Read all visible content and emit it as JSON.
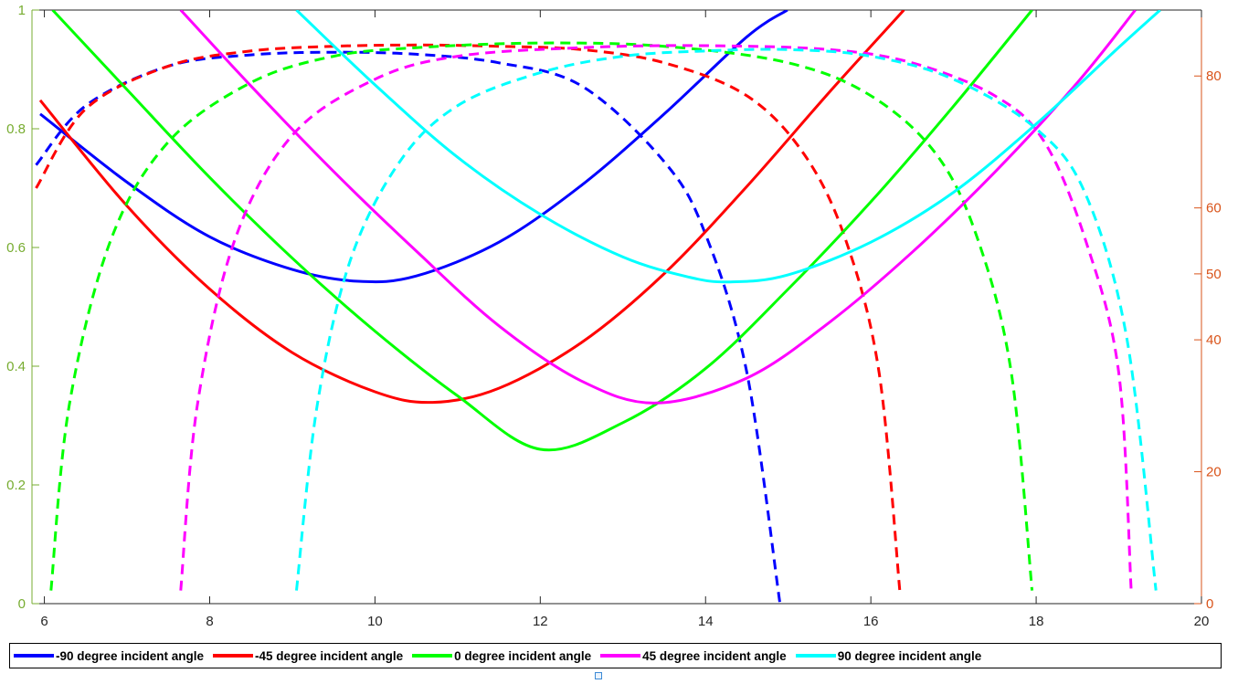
{
  "chart_data": {
    "type": "line",
    "xlim": [
      5.85,
      20
    ],
    "ylim_left": [
      0,
      1
    ],
    "ylim_right": [
      0,
      90
    ],
    "x_ticks": [
      "6",
      "8",
      "10",
      "12",
      "14",
      "16",
      "18",
      "20"
    ],
    "y_ticks_left": [
      "0",
      "0.2",
      "0.4",
      "0.6",
      "0.8",
      "1"
    ],
    "y_ticks_right": [
      "0",
      "20",
      "40",
      "50",
      "60",
      "80"
    ],
    "legend_placement": "bottom-outside",
    "grid": false,
    "series": [
      {
        "name": "-90 degree incident angle",
        "color": "#0000ff",
        "solid": {
          "axis": "left",
          "x": [
            5.95,
            7,
            8,
            9,
            9.8,
            10.5,
            11.5,
            12.5,
            13.5,
            14.5,
            14.99
          ],
          "y": [
            0.825,
            0.71,
            0.618,
            0.563,
            0.543,
            0.552,
            0.609,
            0.705,
            0.825,
            0.955,
            1.0
          ]
        },
        "dashed": {
          "axis": "right",
          "x": [
            5.9,
            6.5,
            7.5,
            8.5,
            9.5,
            10.5,
            11.5,
            12.5,
            13.5,
            14,
            14.5,
            14.9
          ],
          "y": [
            66.5,
            75.5,
            81.5,
            83.2,
            83.6,
            83.3,
            82,
            78.5,
            67,
            56,
            35,
            0
          ]
        }
      },
      {
        "name": "-45 degree incident angle",
        "color": "#ff0000",
        "solid": {
          "axis": "left",
          "x": [
            5.95,
            7,
            8,
            9,
            10,
            10.7,
            11.5,
            12.5,
            13.5,
            14.5,
            15.5,
            16.4
          ],
          "y": [
            0.848,
            0.67,
            0.53,
            0.423,
            0.357,
            0.339,
            0.363,
            0.44,
            0.556,
            0.703,
            0.862,
            1.0
          ]
        },
        "dashed": {
          "axis": "right",
          "x": [
            5.9,
            6.5,
            7.5,
            8.5,
            9.5,
            10.5,
            11.5,
            12.5,
            13.5,
            14.5,
            15.2,
            15.7,
            16.1,
            16.35
          ],
          "y": [
            63,
            75,
            81.5,
            83.8,
            84.5,
            84.7,
            84.5,
            84,
            82,
            77,
            68,
            55,
            35,
            2
          ]
        }
      },
      {
        "name": "0 degree incident angle",
        "color": "#00ff00",
        "solid": {
          "axis": "left",
          "x": [
            6.1,
            7,
            8,
            9,
            10,
            11,
            12,
            13,
            14,
            15,
            16,
            17,
            17.95
          ],
          "y": [
            1.0,
            0.866,
            0.718,
            0.582,
            0.459,
            0.35,
            0.26,
            0.305,
            0.396,
            0.53,
            0.677,
            0.838,
            1.0
          ]
        },
        "dashed": {
          "axis": "right",
          "x": [
            6.08,
            6.3,
            6.8,
            7.5,
            8.5,
            9.5,
            10.5,
            12,
            13.5,
            15,
            16,
            16.8,
            17.3,
            17.7,
            17.95
          ],
          "y": [
            2,
            30,
            55,
            70,
            79,
            83,
            84.3,
            85,
            84.5,
            82,
            77,
            68,
            55,
            35,
            2
          ]
        }
      },
      {
        "name": "45 degree incident angle",
        "color": "#ff00ff",
        "solid": {
          "axis": "left",
          "x": [
            7.65,
            8.5,
            9.5,
            10.5,
            11.5,
            12.5,
            13.4,
            14.5,
            15.5,
            16.5,
            17.5,
            18.5,
            19.2
          ],
          "y": [
            1.0,
            0.872,
            0.728,
            0.594,
            0.468,
            0.375,
            0.338,
            0.38,
            0.474,
            0.592,
            0.727,
            0.878,
            1.0
          ]
        },
        "dashed": {
          "axis": "right",
          "x": [
            7.65,
            7.85,
            8.3,
            9,
            10,
            11,
            12.5,
            14,
            15.5,
            16.5,
            17.5,
            18.1,
            18.6,
            19,
            19.15
          ],
          "y": [
            2,
            30,
            55,
            71,
            79.5,
            83,
            84.3,
            84.6,
            84,
            82,
            77,
            70,
            55,
            35,
            2
          ]
        }
      },
      {
        "name": "90 degree incident angle",
        "color": "#00ffff",
        "solid": {
          "axis": "left",
          "x": [
            9.05,
            10,
            11,
            12,
            13,
            13.8,
            14.3,
            15,
            16,
            17,
            18,
            19,
            19.5
          ],
          "y": [
            1.0,
            0.874,
            0.752,
            0.656,
            0.584,
            0.55,
            0.542,
            0.554,
            0.609,
            0.693,
            0.808,
            0.937,
            1.0
          ]
        },
        "dashed": {
          "axis": "right",
          "x": [
            9.05,
            9.3,
            9.7,
            10.3,
            11,
            12,
            13,
            14,
            15,
            16,
            17,
            18,
            18.6,
            19.1,
            19.45
          ],
          "y": [
            2,
            30,
            52,
            67,
            75.5,
            80.5,
            83,
            83.8,
            84,
            83,
            79.5,
            72,
            62,
            40,
            2
          ]
        }
      }
    ]
  }
}
